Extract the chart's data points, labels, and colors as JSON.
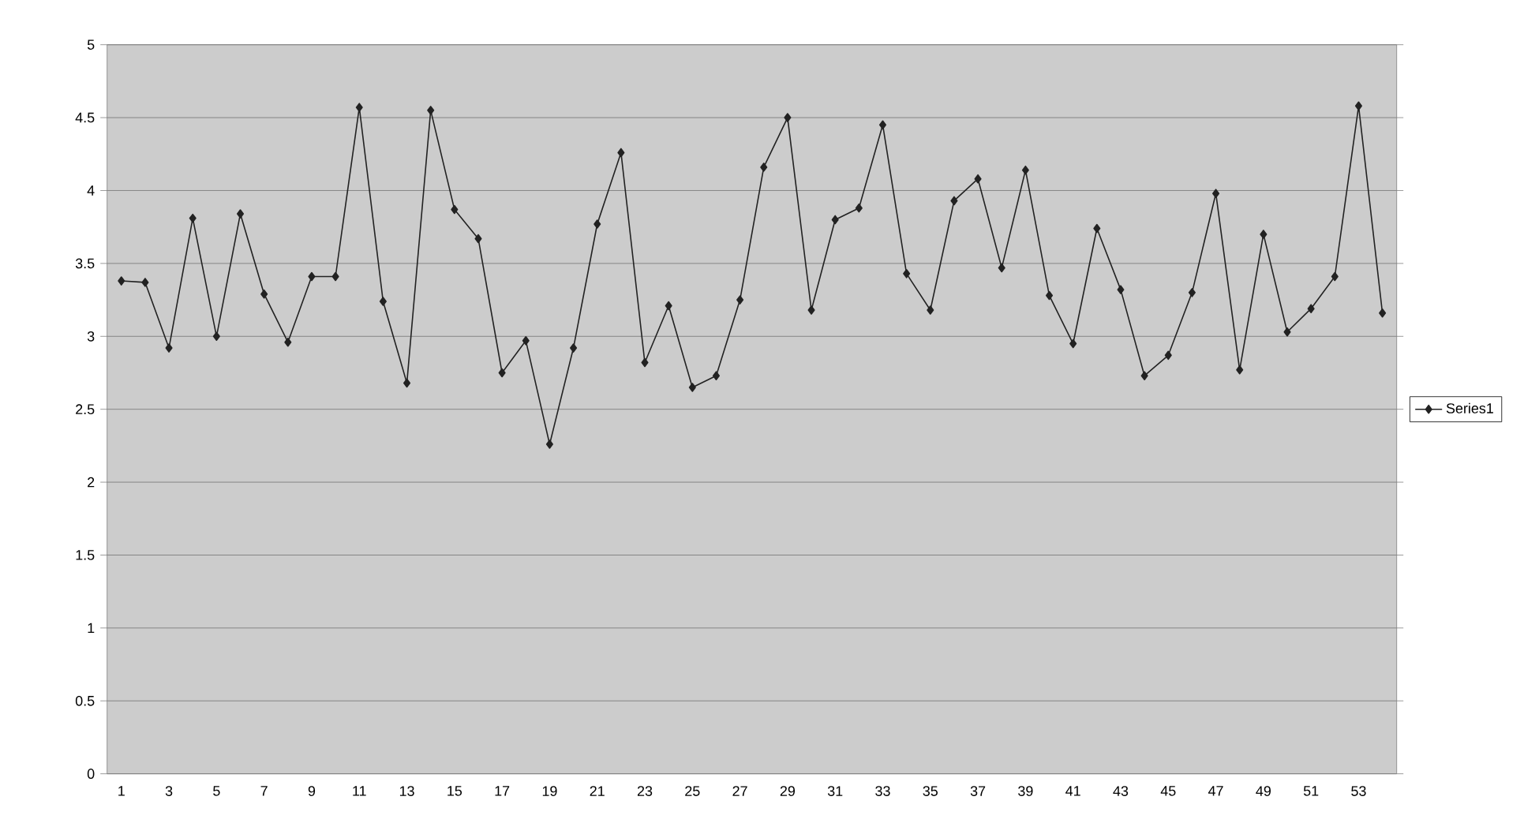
{
  "chart_data": {
    "type": "line",
    "categories": [
      "1",
      null,
      "3",
      null,
      "5",
      null,
      "7",
      null,
      "9",
      null,
      "11",
      null,
      "13",
      null,
      "15",
      null,
      "17",
      null,
      "19",
      null,
      "21",
      null,
      "23",
      null,
      "25",
      null,
      "27",
      null,
      "29",
      null,
      "31",
      null,
      "33",
      null,
      "35",
      null,
      "37",
      null,
      "39",
      null,
      "41",
      null,
      "43",
      null,
      "45",
      null,
      "47",
      null,
      "49",
      null,
      "51",
      null,
      "53",
      null
    ],
    "series": [
      {
        "name": "Series1",
        "color": "#222222",
        "values": [
          3.38,
          3.37,
          2.92,
          3.81,
          3.0,
          3.84,
          3.29,
          2.96,
          3.41,
          3.41,
          4.57,
          3.24,
          2.68,
          4.55,
          3.87,
          3.67,
          2.75,
          2.97,
          2.26,
          2.92,
          3.77,
          4.26,
          2.82,
          3.21,
          2.65,
          2.73,
          3.25,
          4.16,
          4.5,
          3.18,
          3.8,
          3.88,
          4.45,
          3.43,
          3.18,
          3.93,
          4.08,
          3.47,
          4.14,
          3.28,
          2.95,
          3.74,
          3.32,
          2.73,
          2.87,
          3.3,
          3.98,
          2.77,
          3.7,
          3.03,
          3.19,
          3.41,
          4.58,
          3.16
        ]
      }
    ],
    "ylim": [
      0,
      5
    ],
    "yticks": [
      0,
      0.5,
      1,
      1.5,
      2,
      2.5,
      3,
      3.5,
      4,
      4.5,
      5
    ],
    "grid": "y",
    "legend": "right",
    "marker": "diamond",
    "line_style": "solid"
  }
}
